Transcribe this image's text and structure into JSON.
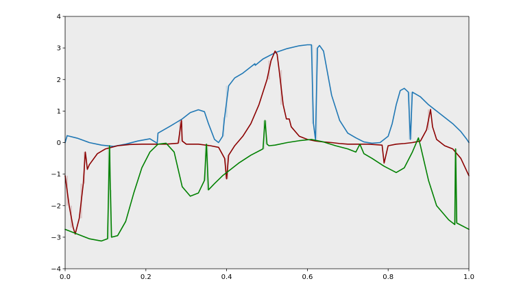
{
  "chart_data": {
    "type": "line",
    "title": "",
    "xlabel": "",
    "ylabel": "",
    "xlim": [
      0.0,
      1.0
    ],
    "ylim": [
      -4,
      4
    ],
    "grid": false,
    "legend": "none",
    "background": "#ececec",
    "x_ticks": [
      0.0,
      0.2,
      0.4,
      0.6,
      0.8,
      1.0
    ],
    "x_tick_labels": [
      "0.0",
      "0.2",
      "0.4",
      "0.6",
      "0.8",
      "1.0"
    ],
    "y_ticks": [
      -4,
      -3,
      -2,
      -1,
      0,
      1,
      2,
      3,
      4
    ],
    "y_tick_labels": [
      "−4",
      "−3",
      "−2",
      "−1",
      "0",
      "1",
      "2",
      "3",
      "4"
    ],
    "series": [
      {
        "color": "#1f77b4",
        "x": [
          0.0,
          0.005,
          0.03,
          0.06,
          0.09,
          0.12,
          0.15,
          0.18,
          0.21,
          0.228,
          0.23,
          0.26,
          0.29,
          0.31,
          0.33,
          0.345,
          0.355,
          0.37,
          0.38,
          0.39,
          0.395,
          0.405,
          0.42,
          0.44,
          0.46,
          0.47,
          0.471,
          0.49,
          0.52,
          0.55,
          0.58,
          0.6,
          0.61,
          0.615,
          0.62,
          0.625,
          0.63,
          0.64,
          0.66,
          0.68,
          0.7,
          0.72,
          0.74,
          0.76,
          0.78,
          0.8,
          0.81,
          0.82,
          0.83,
          0.84,
          0.85,
          0.855,
          0.86,
          0.88,
          0.9,
          0.93,
          0.96,
          0.98,
          0.995,
          1.0
        ],
        "y": [
          0.0,
          0.22,
          0.14,
          0.0,
          -0.08,
          -0.12,
          -0.05,
          0.05,
          0.12,
          -0.02,
          0.3,
          0.52,
          0.75,
          0.95,
          1.04,
          0.98,
          0.6,
          0.1,
          0.0,
          0.2,
          0.8,
          1.8,
          2.05,
          2.2,
          2.4,
          2.5,
          2.45,
          2.65,
          2.85,
          2.98,
          3.07,
          3.1,
          3.1,
          0.6,
          0.1,
          3.0,
          3.08,
          2.9,
          1.5,
          0.7,
          0.3,
          0.15,
          0.02,
          -0.02,
          0.0,
          0.2,
          0.6,
          1.2,
          1.65,
          1.72,
          1.6,
          0.1,
          1.6,
          1.45,
          1.2,
          0.9,
          0.6,
          0.35,
          0.1,
          0.0
        ]
      },
      {
        "color": "#8b0000",
        "x": [
          0.0,
          0.01,
          0.02,
          0.025,
          0.035,
          0.045,
          0.05,
          0.052,
          0.055,
          0.06,
          0.08,
          0.1,
          0.13,
          0.16,
          0.19,
          0.22,
          0.25,
          0.28,
          0.288,
          0.29,
          0.3,
          0.33,
          0.36,
          0.38,
          0.395,
          0.4,
          0.405,
          0.42,
          0.44,
          0.46,
          0.48,
          0.5,
          0.51,
          0.52,
          0.525,
          0.53,
          0.54,
          0.548,
          0.555,
          0.56,
          0.58,
          0.6,
          0.62,
          0.64,
          0.66,
          0.68,
          0.7,
          0.72,
          0.75,
          0.785,
          0.79,
          0.8,
          0.82,
          0.84,
          0.86,
          0.88,
          0.895,
          0.905,
          0.91,
          0.92,
          0.94,
          0.96,
          0.98,
          1.0
        ],
        "y": [
          -1.05,
          -2.0,
          -2.7,
          -2.9,
          -2.4,
          -1.3,
          -0.3,
          -0.5,
          -0.85,
          -0.7,
          -0.35,
          -0.2,
          -0.1,
          -0.06,
          -0.05,
          -0.05,
          -0.05,
          -0.02,
          0.7,
          0.05,
          -0.05,
          -0.05,
          -0.1,
          -0.15,
          -0.5,
          -1.15,
          -0.4,
          -0.1,
          0.2,
          0.6,
          1.2,
          2.0,
          2.6,
          2.9,
          2.8,
          2.3,
          1.2,
          0.75,
          0.75,
          0.5,
          0.2,
          0.1,
          0.05,
          0.02,
          0.0,
          -0.03,
          -0.05,
          -0.05,
          -0.05,
          -0.08,
          -0.65,
          -0.1,
          -0.05,
          -0.03,
          0.0,
          0.05,
          0.4,
          1.05,
          0.5,
          0.1,
          -0.1,
          -0.2,
          -0.5,
          -1.05
        ]
      },
      {
        "color": "#008000",
        "x": [
          0.0,
          0.03,
          0.06,
          0.09,
          0.105,
          0.11,
          0.112,
          0.115,
          0.13,
          0.15,
          0.17,
          0.19,
          0.21,
          0.23,
          0.25,
          0.27,
          0.29,
          0.31,
          0.33,
          0.345,
          0.35,
          0.355,
          0.37,
          0.39,
          0.41,
          0.43,
          0.46,
          0.49,
          0.495,
          0.5,
          0.505,
          0.52,
          0.55,
          0.58,
          0.61,
          0.64,
          0.67,
          0.7,
          0.72,
          0.73,
          0.74,
          0.76,
          0.79,
          0.82,
          0.84,
          0.86,
          0.875,
          0.88,
          0.9,
          0.92,
          0.95,
          0.965,
          0.967,
          0.97,
          1.0
        ],
        "y": [
          -2.75,
          -2.9,
          -3.05,
          -3.12,
          -3.05,
          -0.1,
          -1.5,
          -3.0,
          -2.95,
          -2.5,
          -1.6,
          -0.8,
          -0.3,
          -0.05,
          -0.02,
          -0.3,
          -1.4,
          -1.7,
          -1.6,
          -1.2,
          -0.05,
          -1.5,
          -1.3,
          -1.05,
          -0.85,
          -0.65,
          -0.4,
          -0.2,
          0.7,
          -0.05,
          -0.1,
          -0.08,
          0.0,
          0.06,
          0.1,
          0.02,
          -0.1,
          -0.2,
          -0.3,
          -0.05,
          -0.35,
          -0.5,
          -0.75,
          -0.95,
          -0.8,
          -0.3,
          0.15,
          -0.1,
          -1.2,
          -2.0,
          -2.45,
          -2.6,
          -0.2,
          -2.55,
          -2.75
        ]
      }
    ]
  }
}
